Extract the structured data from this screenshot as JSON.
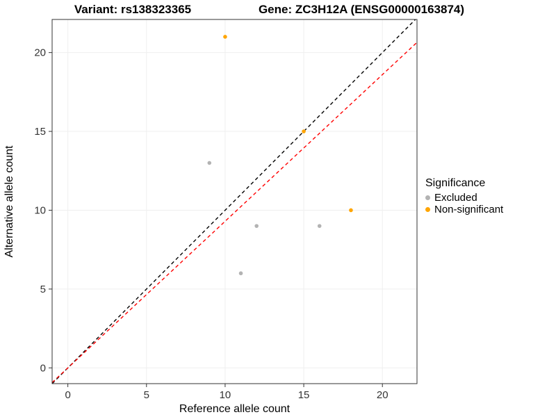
{
  "chart_data": {
    "type": "scatter",
    "title_left": "Variant: rs138323365",
    "title_right": "Gene: ZC3H12A (ENSG00000163874)",
    "xlabel": "Reference allele count",
    "ylabel": "Alternative allele count",
    "xlim": [
      -1,
      22.2
    ],
    "ylim": [
      -1,
      22.1
    ],
    "xticks": [
      0,
      5,
      10,
      15,
      20
    ],
    "yticks": [
      0,
      5,
      10,
      15,
      20
    ],
    "grid": true,
    "legend_position": "right",
    "series": [
      {
        "name": "Excluded",
        "color": "#b3b3b3",
        "points": [
          [
            9,
            13
          ],
          [
            11,
            6
          ],
          [
            12,
            9
          ],
          [
            16,
            9
          ]
        ]
      },
      {
        "name": "Non-significant",
        "color": "#ffa500",
        "points": [
          [
            10,
            21
          ],
          [
            15,
            15
          ],
          [
            18,
            10
          ]
        ]
      }
    ],
    "lines": [
      {
        "name": "identity",
        "color": "#000000",
        "style": "dashed",
        "slope": 1,
        "intercept": 0
      },
      {
        "name": "fit",
        "color": "#ff0000",
        "style": "dashed",
        "slope": 0.93,
        "intercept": 0
      }
    ],
    "legend": {
      "title": "Significance",
      "entries": [
        {
          "label": "Excluded",
          "color": "#b3b3b3"
        },
        {
          "label": "Non-significant",
          "color": "#ffa500"
        }
      ]
    },
    "colors": {
      "grid": "#efefef",
      "border": "#333333",
      "tick": "#333333",
      "background": "#ffffff"
    }
  }
}
